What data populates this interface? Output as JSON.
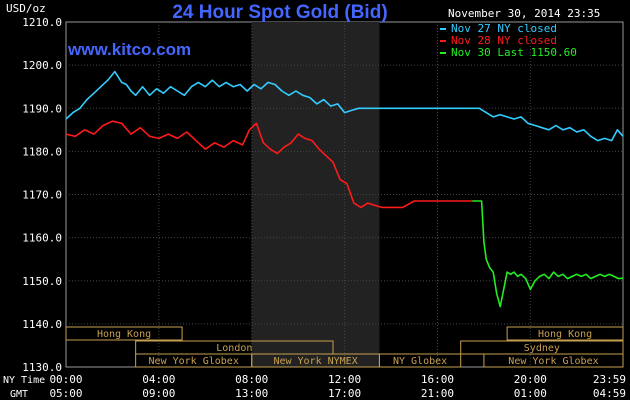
{
  "header": {
    "title": "24 Hour Spot Gold (Bid)",
    "unit": "USD/oz",
    "date": "November 30, 2014 23:35",
    "website": "www.kitco.com"
  },
  "legend": [
    {
      "label": "Nov 27 NY closed",
      "color": "#33ccff"
    },
    {
      "label": "Nov 28 NY closed",
      "color": "#ff1a1a"
    },
    {
      "label": "Nov 30 Last 1150.60",
      "color": "#22ee22"
    }
  ],
  "time_rows": {
    "ny_label": "NY Time",
    "gmt_label": "GMT",
    "ny_ticks": [
      "00:00",
      "04:00",
      "08:00",
      "12:00",
      "16:00",
      "20:00",
      "23:59"
    ],
    "gmt_ticks": [
      "05:00",
      "09:00",
      "13:00",
      "17:00",
      "21:00",
      "01:00",
      "04:59"
    ]
  },
  "sessions": [
    {
      "label": "Hong Kong",
      "row": 0,
      "from": 0,
      "to": 5
    },
    {
      "label": "London",
      "row": 1,
      "from": 3,
      "to": 11.5
    },
    {
      "label": "New York Globex",
      "row": 2,
      "from": 3,
      "to": 8
    },
    {
      "label": "New York NYMEX",
      "row": 2,
      "from": 8,
      "to": 13.5
    },
    {
      "label": "NY Globex",
      "row": 2,
      "from": 13.5,
      "to": 17
    },
    {
      "label": "Hong Kong",
      "row": 0,
      "from": 19,
      "to": 23.99
    },
    {
      "label": "Sydney",
      "row": 1,
      "from": 17,
      "to": 23.99
    },
    {
      "label": "New York Globex",
      "row": 2,
      "from": 18,
      "to": 23.99
    }
  ],
  "chart_data": {
    "type": "line",
    "title": "24 Hour Spot Gold (Bid)",
    "ylabel": "USD/oz",
    "ylim": [
      1130,
      1210
    ],
    "yticks": [
      1130,
      1140,
      1150,
      1160,
      1170,
      1180,
      1190,
      1200,
      1210
    ],
    "xlim_hours": [
      0,
      23.99
    ],
    "highlight_band_hours": [
      8,
      13.5
    ],
    "grid": true,
    "legend_position": "top-right",
    "series": [
      {
        "name": "Nov 27 NY closed",
        "color": "#33ccff",
        "x": [
          0,
          0.3,
          0.6,
          0.9,
          1.2,
          1.5,
          1.8,
          2.1,
          2.4,
          2.6,
          2.8,
          3.0,
          3.3,
          3.6,
          3.9,
          4.2,
          4.5,
          4.8,
          5.1,
          5.4,
          5.7,
          6.0,
          6.3,
          6.6,
          6.9,
          7.2,
          7.5,
          7.8,
          8.1,
          8.4,
          8.7,
          9.0,
          9.3,
          9.6,
          9.9,
          10.2,
          10.5,
          10.8,
          11.1,
          11.4,
          11.7,
          12.0,
          12.3,
          12.6,
          12.9,
          13.2,
          13.5,
          14,
          15,
          16,
          17,
          17.5,
          17.8,
          18.1,
          18.4,
          18.7,
          19.0,
          19.3,
          19.6,
          19.9,
          20.2,
          20.5,
          20.8,
          21.1,
          21.4,
          21.7,
          22.0,
          22.3,
          22.6,
          22.9,
          23.2,
          23.5,
          23.75,
          23.99
        ],
        "values": [
          1187.5,
          1189,
          1190,
          1192,
          1193.5,
          1195,
          1196.5,
          1198.5,
          1196,
          1195.5,
          1194,
          1193,
          1195,
          1193,
          1194.5,
          1193.5,
          1195,
          1194,
          1193,
          1195,
          1196,
          1195,
          1196.5,
          1195,
          1196,
          1195,
          1195.5,
          1194,
          1195.5,
          1194.5,
          1196,
          1195.5,
          1194,
          1193,
          1194,
          1193,
          1192.5,
          1191,
          1192,
          1190.5,
          1191,
          1189,
          1189.5,
          1190,
          1190,
          1190,
          1190,
          1190,
          1190,
          1190,
          1190,
          1190,
          1190,
          1189,
          1188,
          1188.5,
          1188,
          1187.5,
          1188,
          1186.5,
          1186,
          1185.5,
          1185,
          1186,
          1185,
          1185.5,
          1184.5,
          1185,
          1183.5,
          1182.5,
          1183,
          1182.5,
          1185,
          1183.5
        ]
      },
      {
        "name": "Nov 28 NY closed",
        "color": "#ff1a1a",
        "x": [
          0,
          0.4,
          0.8,
          1.2,
          1.6,
          2.0,
          2.4,
          2.8,
          3.2,
          3.6,
          4.0,
          4.4,
          4.8,
          5.2,
          5.6,
          6.0,
          6.4,
          6.8,
          7.2,
          7.6,
          7.9,
          8.2,
          8.5,
          8.8,
          9.1,
          9.4,
          9.7,
          10.0,
          10.3,
          10.6,
          10.9,
          11.2,
          11.5,
          11.8,
          12.1,
          12.4,
          12.7,
          13.0,
          13.3,
          13.6,
          14,
          14.5,
          15,
          15.5,
          16,
          16.5,
          17,
          17.5
        ],
        "values": [
          1184,
          1183.5,
          1185,
          1184,
          1186,
          1187,
          1186.5,
          1184,
          1185.5,
          1183.5,
          1183,
          1184,
          1183,
          1184.5,
          1182.5,
          1180.5,
          1182,
          1181,
          1182.5,
          1181.5,
          1185,
          1186.5,
          1182,
          1180.5,
          1179.5,
          1181,
          1182,
          1184,
          1183,
          1182.5,
          1180.5,
          1179,
          1177.5,
          1173.5,
          1172.5,
          1168,
          1167,
          1168,
          1167.5,
          1167,
          1167,
          1167,
          1168.5,
          1168.5,
          1168.5,
          1168.5,
          1168.5,
          1168.5
        ]
      },
      {
        "name": "Nov 30 Last 1150.60",
        "color": "#22ee22",
        "x": [
          17.5,
          17.9,
          18.0,
          18.1,
          18.25,
          18.4,
          18.55,
          18.7,
          18.85,
          19.0,
          19.15,
          19.3,
          19.45,
          19.6,
          19.8,
          20.0,
          20.2,
          20.4,
          20.6,
          20.8,
          21.0,
          21.2,
          21.4,
          21.6,
          21.8,
          22.0,
          22.2,
          22.4,
          22.6,
          22.8,
          23.0,
          23.2,
          23.4,
          23.6,
          23.8,
          23.99
        ],
        "values": [
          1168.5,
          1168.5,
          1159,
          1155,
          1153,
          1152,
          1147,
          1144,
          1148,
          1152,
          1151.5,
          1152,
          1151,
          1151.5,
          1150.5,
          1148,
          1150,
          1151,
          1151.5,
          1150.5,
          1152,
          1151,
          1151.5,
          1150.5,
          1151,
          1151.5,
          1151,
          1151.5,
          1150.5,
          1151,
          1151.5,
          1151,
          1151.5,
          1151,
          1150.5,
          1150.6
        ]
      }
    ]
  }
}
